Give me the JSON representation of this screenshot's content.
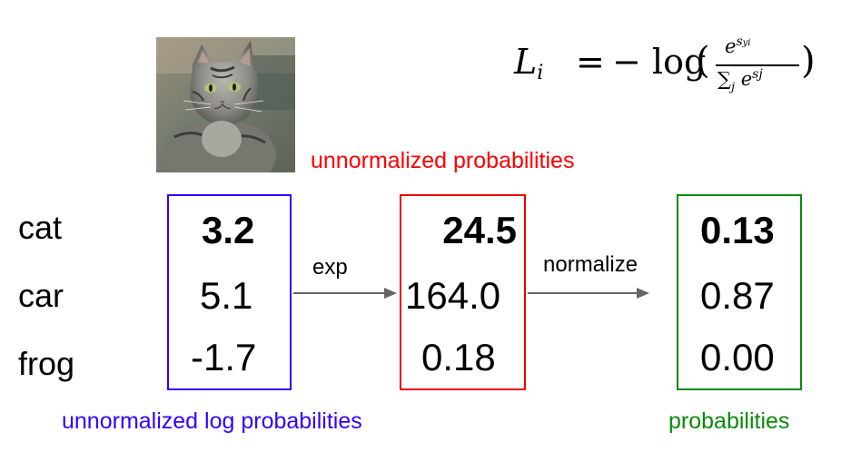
{
  "formula": {
    "lhs": "L",
    "lhs_sub": "i",
    "eq": "=",
    "minus_log": "− log",
    "paren_open": "(",
    "paren_close": ")",
    "numerator_base": "e",
    "numerator_exp": "s",
    "numerator_exp_sub": "yi",
    "denominator_sum": "∑",
    "denominator_sum_sub": "j",
    "denominator_base": "e",
    "denominator_exp": "sj"
  },
  "annotations": {
    "unnormalized_probabilities": "unnormalized probabilities",
    "unnormalized_log_probabilities": "unnormalized log probabilities",
    "probabilities": "probabilities"
  },
  "classes": [
    "cat",
    "car",
    "frog"
  ],
  "scores": [
    "3.2",
    "5.1",
    "-1.7"
  ],
  "exp_scores": [
    "24.5",
    "164.0",
    "0.18"
  ],
  "probabilities": [
    "0.13",
    "0.87",
    "0.00"
  ],
  "arrows": {
    "exp_label": "exp",
    "normalize_label": "normalize"
  },
  "colors": {
    "scores_box": "#3300ff",
    "exp_box": "#ee0000",
    "probs_box": "#0a8a0a",
    "unnormalized_probabilities_text": "#ff0000",
    "unnormalized_log_probabilities_text": "#3300ff",
    "probabilities_text": "#0a8a0a"
  },
  "image": {
    "subject": "cat-photo"
  }
}
